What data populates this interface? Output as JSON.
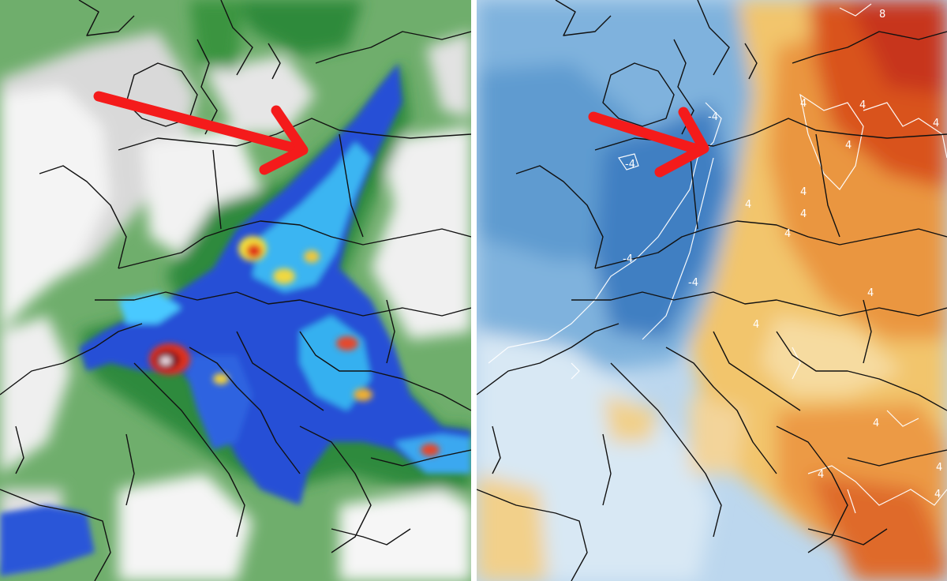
{
  "left_map": {
    "arrow_color": "#f41b1b"
  },
  "right_map": {
    "arrow_color": "#f41b1b",
    "contour_labels": [
      "8",
      "4",
      "4",
      "4",
      "4",
      "4",
      "4",
      "4",
      "4",
      "4",
      "4",
      "-4",
      "-4",
      "-4",
      "-4",
      "4",
      "4",
      "4",
      "4"
    ]
  },
  "colors": {
    "precip_light": "#9cc89a",
    "precip_green": "#3f9a4a",
    "precip_dark_green": "#1e6a2a",
    "precip_blue": "#2b4fd8",
    "precip_cyan": "#35c8ff",
    "precip_yellow": "#f5e23a",
    "precip_red": "#e0301e",
    "precip_maroon": "#7a0a1a",
    "anomaly_dark_blue": "#2f6fb4",
    "anomaly_blue": "#6fa6d6",
    "anomaly_light_blue": "#cfe3f2",
    "anomaly_yellow": "#f2cf6e",
    "anomaly_orange": "#ea8a2a",
    "anomaly_red": "#d6401e",
    "borders": "#111111"
  }
}
